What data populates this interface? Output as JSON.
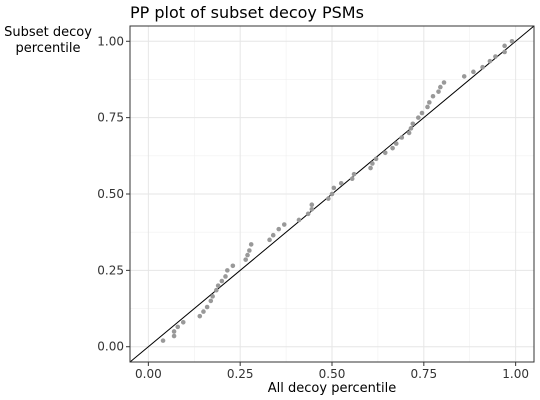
{
  "chart_data": {
    "type": "scatter",
    "title": "PP plot of subset decoy PSMs",
    "xlabel": "All decoy percentile",
    "ylabel_lines": [
      "Subset decoy",
      "percentile"
    ],
    "xlim": [
      -0.05,
      1.05
    ],
    "ylim": [
      -0.05,
      1.05
    ],
    "x_ticks": [
      0.0,
      0.25,
      0.5,
      0.75,
      1.0
    ],
    "x_tick_labels": [
      "0.00",
      "0.25",
      "0.50",
      "0.75",
      "1.00"
    ],
    "y_ticks": [
      0.0,
      0.25,
      0.5,
      0.75,
      1.0
    ],
    "y_tick_labels": [
      "0.00",
      "0.25",
      "0.50",
      "0.75",
      "1.00"
    ],
    "grid": true,
    "reference_line": {
      "from": [
        -0.05,
        -0.05
      ],
      "to": [
        1.05,
        1.05
      ],
      "color": "#000000"
    },
    "point_color": "#999999",
    "points": [
      [
        0.04,
        0.02
      ],
      [
        0.07,
        0.035
      ],
      [
        0.07,
        0.05
      ],
      [
        0.08,
        0.065
      ],
      [
        0.095,
        0.08
      ],
      [
        0.14,
        0.1
      ],
      [
        0.15,
        0.115
      ],
      [
        0.16,
        0.13
      ],
      [
        0.17,
        0.15
      ],
      [
        0.175,
        0.165
      ],
      [
        0.185,
        0.185
      ],
      [
        0.19,
        0.2
      ],
      [
        0.2,
        0.215
      ],
      [
        0.21,
        0.23
      ],
      [
        0.215,
        0.25
      ],
      [
        0.23,
        0.265
      ],
      [
        0.265,
        0.285
      ],
      [
        0.27,
        0.3
      ],
      [
        0.275,
        0.315
      ],
      [
        0.28,
        0.335
      ],
      [
        0.33,
        0.35
      ],
      [
        0.34,
        0.365
      ],
      [
        0.355,
        0.385
      ],
      [
        0.37,
        0.4
      ],
      [
        0.41,
        0.415
      ],
      [
        0.435,
        0.435
      ],
      [
        0.445,
        0.45
      ],
      [
        0.445,
        0.465
      ],
      [
        0.49,
        0.485
      ],
      [
        0.5,
        0.5
      ],
      [
        0.505,
        0.52
      ],
      [
        0.525,
        0.535
      ],
      [
        0.555,
        0.55
      ],
      [
        0.56,
        0.565
      ],
      [
        0.605,
        0.585
      ],
      [
        0.61,
        0.6
      ],
      [
        0.62,
        0.615
      ],
      [
        0.645,
        0.635
      ],
      [
        0.665,
        0.65
      ],
      [
        0.675,
        0.665
      ],
      [
        0.69,
        0.685
      ],
      [
        0.71,
        0.7
      ],
      [
        0.715,
        0.715
      ],
      [
        0.72,
        0.73
      ],
      [
        0.735,
        0.75
      ],
      [
        0.745,
        0.765
      ],
      [
        0.76,
        0.785
      ],
      [
        0.765,
        0.8
      ],
      [
        0.775,
        0.82
      ],
      [
        0.79,
        0.835
      ],
      [
        0.795,
        0.85
      ],
      [
        0.805,
        0.865
      ],
      [
        0.86,
        0.885
      ],
      [
        0.885,
        0.9
      ],
      [
        0.91,
        0.915
      ],
      [
        0.93,
        0.935
      ],
      [
        0.945,
        0.95
      ],
      [
        0.97,
        0.965
      ],
      [
        0.97,
        0.985
      ],
      [
        0.99,
        1.0
      ]
    ]
  }
}
